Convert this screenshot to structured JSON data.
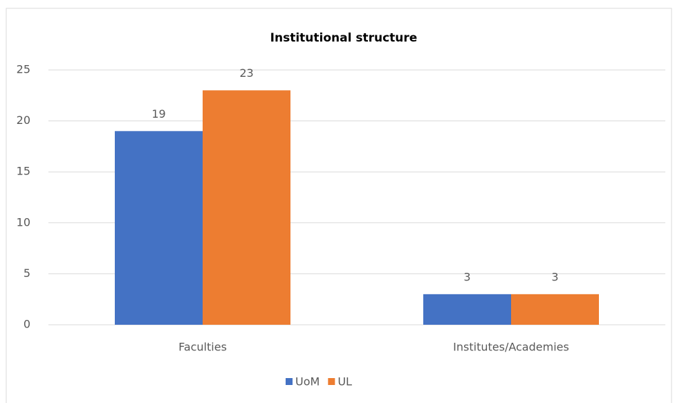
{
  "chart_data": {
    "type": "bar",
    "title": "Institutional structure",
    "categories": [
      "Faculties",
      "Institutes/Academies"
    ],
    "series": [
      {
        "name": "UoM",
        "color": "#4472c4",
        "values": [
          19,
          3
        ]
      },
      {
        "name": "UL",
        "color": "#ed7d31",
        "values": [
          23,
          3
        ]
      }
    ],
    "ylim": [
      0,
      25
    ],
    "yticks": [
      0,
      5,
      10,
      15,
      20,
      25
    ],
    "grid": true,
    "legend": "bottom"
  }
}
